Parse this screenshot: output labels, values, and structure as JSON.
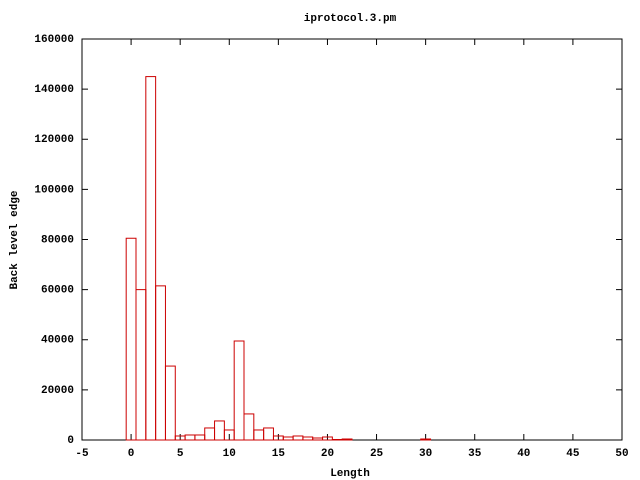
{
  "chart_data": {
    "type": "bar",
    "title": "iprotocol.3.pm",
    "x_label": "Length",
    "y_label": "Back level edge",
    "x": [
      0,
      1,
      2,
      3,
      4,
      5,
      6,
      7,
      8,
      9,
      10,
      11,
      12,
      13,
      14,
      15,
      16,
      17,
      18,
      19,
      20,
      21,
      22,
      30
    ],
    "values": [
      80500,
      60000,
      145000,
      61500,
      29500,
      1600,
      2000,
      2000,
      4800,
      7600,
      4000,
      39500,
      10400,
      4000,
      4800,
      1600,
      1200,
      1600,
      1200,
      800,
      1200,
      200,
      400,
      400
    ],
    "color": "#cc0000",
    "xlim": [
      -5,
      50
    ],
    "xticks": [
      -5,
      0,
      5,
      10,
      15,
      20,
      25,
      30,
      35,
      40,
      45,
      50
    ],
    "ylim": [
      0,
      160000
    ],
    "yticks": [
      0,
      20000,
      40000,
      60000,
      80000,
      100000,
      120000,
      140000,
      160000
    ]
  }
}
